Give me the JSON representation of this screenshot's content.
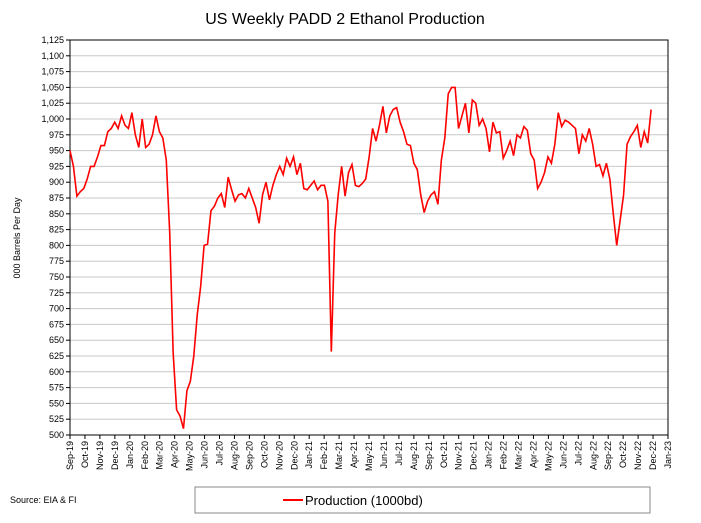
{
  "chart_data": {
    "type": "line",
    "title": "US Weekly PADD 2 Ethanol Production",
    "y_label": "000 Barrels Per Day",
    "source": "Source: EIA & FI",
    "grid": true,
    "legend": "bottom",
    "xlim": [
      0,
      40
    ],
    "xticks": [
      {
        "value": 0,
        "label": "Sep-19"
      },
      {
        "value": 1,
        "label": "Oct-19"
      },
      {
        "value": 2,
        "label": "Nov-19"
      },
      {
        "value": 3,
        "label": "Dec-19"
      },
      {
        "value": 4,
        "label": "Jan-20"
      },
      {
        "value": 5,
        "label": "Feb-20"
      },
      {
        "value": 6,
        "label": "Mar-20"
      },
      {
        "value": 7,
        "label": "Apr-20"
      },
      {
        "value": 8,
        "label": "May-20"
      },
      {
        "value": 9,
        "label": "Jun-20"
      },
      {
        "value": 10,
        "label": "Jul-20"
      },
      {
        "value": 11,
        "label": "Aug-20"
      },
      {
        "value": 12,
        "label": "Sep-20"
      },
      {
        "value": 13,
        "label": "Oct-20"
      },
      {
        "value": 14,
        "label": "Nov-20"
      },
      {
        "value": 15,
        "label": "Dec-20"
      },
      {
        "value": 16,
        "label": "Jan-21"
      },
      {
        "value": 17,
        "label": "Feb-21"
      },
      {
        "value": 18,
        "label": "Mar-21"
      },
      {
        "value": 19,
        "label": "Apr-21"
      },
      {
        "value": 20,
        "label": "May-21"
      },
      {
        "value": 21,
        "label": "Jun-21"
      },
      {
        "value": 22,
        "label": "Jul-21"
      },
      {
        "value": 23,
        "label": "Aug-21"
      },
      {
        "value": 24,
        "label": "Sep-21"
      },
      {
        "value": 25,
        "label": "Oct-21"
      },
      {
        "value": 26,
        "label": "Nov-21"
      },
      {
        "value": 27,
        "label": "Dec-21"
      },
      {
        "value": 28,
        "label": "Jan-22"
      },
      {
        "value": 29,
        "label": "Feb-22"
      },
      {
        "value": 30,
        "label": "Mar-22"
      },
      {
        "value": 31,
        "label": "Apr-22"
      },
      {
        "value": 32,
        "label": "May-22"
      },
      {
        "value": 33,
        "label": "Jun-22"
      },
      {
        "value": 34,
        "label": "Jul-22"
      },
      {
        "value": 35,
        "label": "Aug-22"
      },
      {
        "value": 36,
        "label": "Sep-22"
      },
      {
        "value": 37,
        "label": "Oct-22"
      },
      {
        "value": 38,
        "label": "Nov-22"
      },
      {
        "value": 39,
        "label": "Dec-22"
      },
      {
        "value": 40,
        "label": "Jan-23"
      }
    ],
    "ylim": [
      500,
      1125
    ],
    "yticks": [
      500,
      525,
      550,
      575,
      600,
      625,
      650,
      675,
      700,
      725,
      750,
      775,
      800,
      825,
      850,
      875,
      900,
      925,
      950,
      975,
      {
        "value": 1000,
        "label": "1,000"
      },
      {
        "value": 1025,
        "label": "1,025"
      },
      {
        "value": 1050,
        "label": "1,050"
      },
      {
        "value": 1075,
        "label": "1,075"
      },
      {
        "value": 1100,
        "label": "1,100"
      },
      {
        "value": 1125,
        "label": "1,125"
      }
    ],
    "x": [
      0,
      0.23,
      0.46,
      0.69,
      0.92,
      1.15,
      1.38,
      1.61,
      1.84,
      2.07,
      2.3,
      2.53,
      2.76,
      2.99,
      3.22,
      3.45,
      3.68,
      3.91,
      4.14,
      4.37,
      4.6,
      4.83,
      5.06,
      5.29,
      5.52,
      5.75,
      5.98,
      6.21,
      6.44,
      6.67,
      6.9,
      7.13,
      7.36,
      7.59,
      7.82,
      8.05,
      8.28,
      8.51,
      8.74,
      8.97,
      9.2,
      9.43,
      9.66,
      9.89,
      10.12,
      10.35,
      10.58,
      10.81,
      11.04,
      11.27,
      11.5,
      11.73,
      11.96,
      12.19,
      12.42,
      12.65,
      12.88,
      13.11,
      13.34,
      13.57,
      13.8,
      14.03,
      14.26,
      14.49,
      14.72,
      14.95,
      15.18,
      15.41,
      15.64,
      15.87,
      16.1,
      16.33,
      16.56,
      16.79,
      17.02,
      17.25,
      17.48,
      17.71,
      17.94,
      18.17,
      18.4,
      18.63,
      18.86,
      19.09,
      19.32,
      19.55,
      19.78,
      20.01,
      20.24,
      20.47,
      20.7,
      20.93,
      21.16,
      21.39,
      21.62,
      21.85,
      22.08,
      22.31,
      22.54,
      22.77,
      23,
      23.23,
      23.46,
      23.69,
      23.92,
      24.15,
      24.38,
      24.61,
      24.84,
      25.07,
      25.3,
      25.53,
      25.76,
      25.99,
      26.22,
      26.45,
      26.68,
      26.91,
      27.14,
      27.37,
      27.6,
      27.83,
      28.06,
      28.29,
      28.52,
      28.75,
      28.98,
      29.21,
      29.44,
      29.67,
      29.9,
      30.13,
      30.36,
      30.59,
      30.82,
      31.05,
      31.28,
      31.51,
      31.74,
      31.97,
      32.2,
      32.43,
      32.66,
      32.89,
      33.12,
      33.35,
      33.58,
      33.81,
      34.04,
      34.27,
      34.5,
      34.73,
      34.96,
      35.19,
      35.42,
      35.65,
      35.88,
      36.11,
      36.34,
      36.57,
      36.8,
      37.03,
      37.26,
      37.49,
      37.72,
      37.95,
      38.18,
      38.41,
      38.64,
      38.87
    ],
    "series": [
      {
        "name": "Production (1000bd)",
        "color": "#ff0000",
        "values": [
          950,
          925,
          878,
          885,
          890,
          905,
          925,
          925,
          940,
          958,
          958,
          980,
          985,
          995,
          985,
          1005,
          990,
          985,
          1010,
          975,
          955,
          1000,
          955,
          960,
          975,
          1005,
          980,
          970,
          935,
          820,
          630,
          540,
          530,
          510,
          570,
          585,
          625,
          690,
          735,
          800,
          802,
          855,
          862,
          875,
          882,
          860,
          908,
          888,
          870,
          880,
          882,
          875,
          890,
          875,
          860,
          835,
          880,
          900,
          872,
          895,
          912,
          925,
          912,
          938,
          925,
          940,
          912,
          930,
          890,
          888,
          895,
          902,
          888,
          895,
          895,
          870,
          632,
          820,
          880,
          925,
          878,
          915,
          928,
          895,
          893,
          898,
          905,
          940,
          985,
          965,
          990,
          1020,
          978,
          1005,
          1015,
          1018,
          995,
          980,
          960,
          958,
          930,
          920,
          880,
          852,
          870,
          880,
          885,
          865,
          935,
          970,
          1040,
          1050,
          1050,
          985,
          1005,
          1025,
          978,
          1030,
          1025,
          990,
          1000,
          985,
          948,
          995,
          978,
          980,
          938,
          950,
          965,
          942,
          975,
          970,
          988,
          982,
          945,
          935,
          890,
          900,
          915,
          940,
          930,
          960,
          1010,
          988,
          998,
          995,
          990,
          985,
          945,
          975,
          965,
          985,
          960,
          925,
          928,
          910,
          930,
          905,
          850,
          800,
          840,
          880,
          960,
          972,
          980,
          990,
          955,
          980,
          962,
          1015
        ]
      }
    ]
  }
}
